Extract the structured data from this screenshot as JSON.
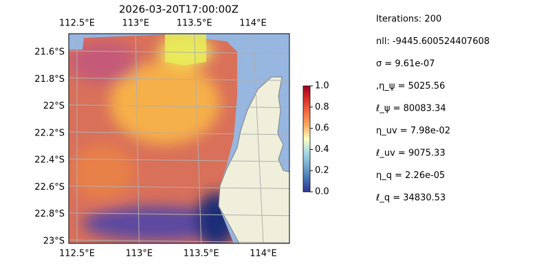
{
  "title": "2026-03-20T17:00:00Z",
  "map": {
    "lon_ticks": [
      {
        "value": 112.5,
        "label": "112.5°E"
      },
      {
        "value": 113,
        "label": "113°E"
      },
      {
        "value": 113.5,
        "label": "113.5°E"
      },
      {
        "value": 114,
        "label": "114°E"
      }
    ],
    "lat_ticks": [
      {
        "value": -21.6,
        "label": "21.6°S"
      },
      {
        "value": -21.8,
        "label": "21.8°S"
      },
      {
        "value": -22,
        "label": "22°S"
      },
      {
        "value": -22.2,
        "label": "22.2°S"
      },
      {
        "value": -22.4,
        "label": "22.4°S"
      },
      {
        "value": -22.6,
        "label": "22.6°S"
      },
      {
        "value": -22.8,
        "label": "22.8°S"
      },
      {
        "value": -23,
        "label": "23°S"
      }
    ]
  },
  "colorbar": {
    "lim": [
      0,
      1
    ],
    "ticks": [
      {
        "value": 0,
        "label": "0.0"
      },
      {
        "value": 0.2,
        "label": "0.2"
      },
      {
        "value": 0.4,
        "label": "0.4"
      },
      {
        "value": 0.6,
        "label": "0.6"
      },
      {
        "value": 0.8,
        "label": "0.8"
      },
      {
        "value": 1,
        "label": "1.0"
      }
    ],
    "colors": [
      "#313695",
      "#4575b4",
      "#74add1",
      "#abd9e9",
      "#ffffbf",
      "#fdae61",
      "#f46d43",
      "#d73027",
      "#a50026"
    ]
  },
  "info": [
    "Iterations: 200",
    "nll: -9445.600524407608",
    "σ = 9.61e-07",
    ",η_ψ = 5025.56",
    "ℓ_ψ = 80083.34",
    "η_uv = 7.98e-02",
    "ℓ_uv = 9075.33",
    "η_q = 2.26e-05",
    "ℓ_q = 34830.53"
  ]
}
